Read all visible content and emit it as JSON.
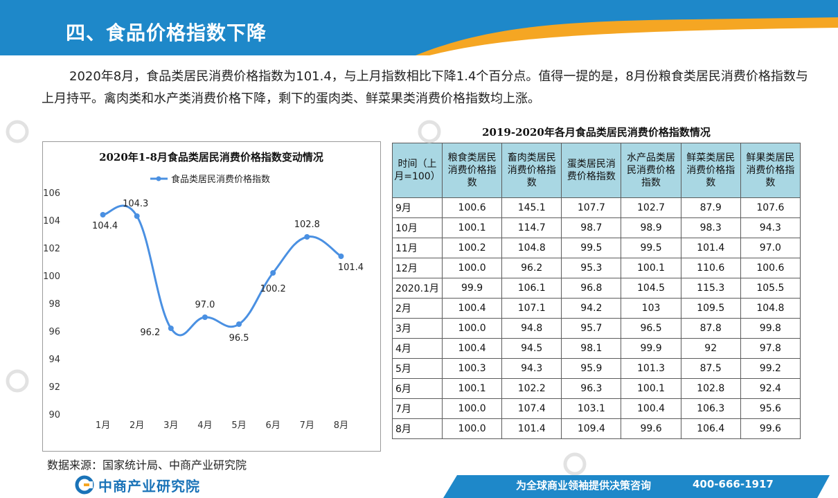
{
  "page": {
    "title": "四、食品价格指数下降",
    "intro": "2020年8月，食品类居民消费价格指数为101.4，与上月指数相比下降1.4个百分点。值得一提的是，8月份粮食类居民消费价格指数与上月持平。禽肉类和水产类消费价格下降，剩下的蛋肉类、鲜菜果类消费价格指数均上涨。",
    "source": "数据来源：国家统计局、中商产业研究院"
  },
  "footer": {
    "brand": "中商产业研究院",
    "slogan": "为全球商业领袖提供决策咨询",
    "phone": "400-666-1917"
  },
  "colors": {
    "header_blue": "#1e88c9",
    "header_orange": "#f5a623",
    "line_blue": "#4a90e2",
    "table_header": "#a9d7e3"
  },
  "chart_data": {
    "type": "line",
    "title": "2020年1-8月食品类居民消费价格指数变动情况",
    "categories": [
      "1月",
      "2月",
      "3月",
      "4月",
      "5月",
      "6月",
      "7月",
      "8月"
    ],
    "series": [
      {
        "name": "食品类居民消费价格指数",
        "values": [
          104.4,
          104.3,
          96.2,
          97.0,
          96.5,
          100.2,
          102.8,
          101.4
        ]
      }
    ],
    "value_labels": [
      "104.4",
      "104.3",
      "96.2",
      "97.0",
      "96.5",
      "100.2",
      "102.8",
      "101.4"
    ],
    "ylim": [
      90,
      106
    ],
    "yticks": [
      "90",
      "92",
      "94",
      "96",
      "98",
      "100",
      "102",
      "104",
      "106"
    ],
    "legend_position": "top",
    "grid": false,
    "smooth": true
  },
  "table": {
    "title": "2019-2020年各月食品类居民消费价格指数情况",
    "headers": [
      "时间（上月=100）",
      "粮食类居民消费价格指数",
      "畜肉类居民消费价格指数",
      "蛋类居民消费价格指数",
      "水产品类居民消费价格指数",
      "鲜菜类居民消费价格指数",
      "鲜果类居民消费价格指数"
    ],
    "rows": [
      [
        "9月",
        "100.6",
        "145.1",
        "107.7",
        "102.7",
        "87.9",
        "107.6"
      ],
      [
        "10月",
        "100.1",
        "114.7",
        "98.7",
        "98.9",
        "98.3",
        "94.3"
      ],
      [
        "11月",
        "100.2",
        "104.8",
        "99.5",
        "99.5",
        "101.4",
        "97.0"
      ],
      [
        "12月",
        "100.0",
        "96.2",
        "95.3",
        "100.1",
        "110.6",
        "100.6"
      ],
      [
        "2020.1月",
        "99.9",
        "106.1",
        "96.8",
        "104.5",
        "115.3",
        "105.5"
      ],
      [
        "2月",
        "100.4",
        "107.1",
        "94.2",
        "103",
        "109.5",
        "104.8"
      ],
      [
        "3月",
        "100.0",
        "94.8",
        "95.7",
        "96.5",
        "87.8",
        "99.8"
      ],
      [
        "4月",
        "100.4",
        "94.5",
        "98.1",
        "99.9",
        "92",
        "97.8"
      ],
      [
        "5月",
        "100.3",
        "94.3",
        "95.9",
        "101.3",
        "87.5",
        "99.2"
      ],
      [
        "6月",
        "100.1",
        "102.2",
        "96.3",
        "100.1",
        "102.8",
        "92.4"
      ],
      [
        "7月",
        "100.0",
        "107.4",
        "103.1",
        "100.4",
        "106.3",
        "95.6"
      ],
      [
        "8月",
        "100.0",
        "101.4",
        "109.4",
        "99.6",
        "106.4",
        "99.6"
      ]
    ]
  }
}
